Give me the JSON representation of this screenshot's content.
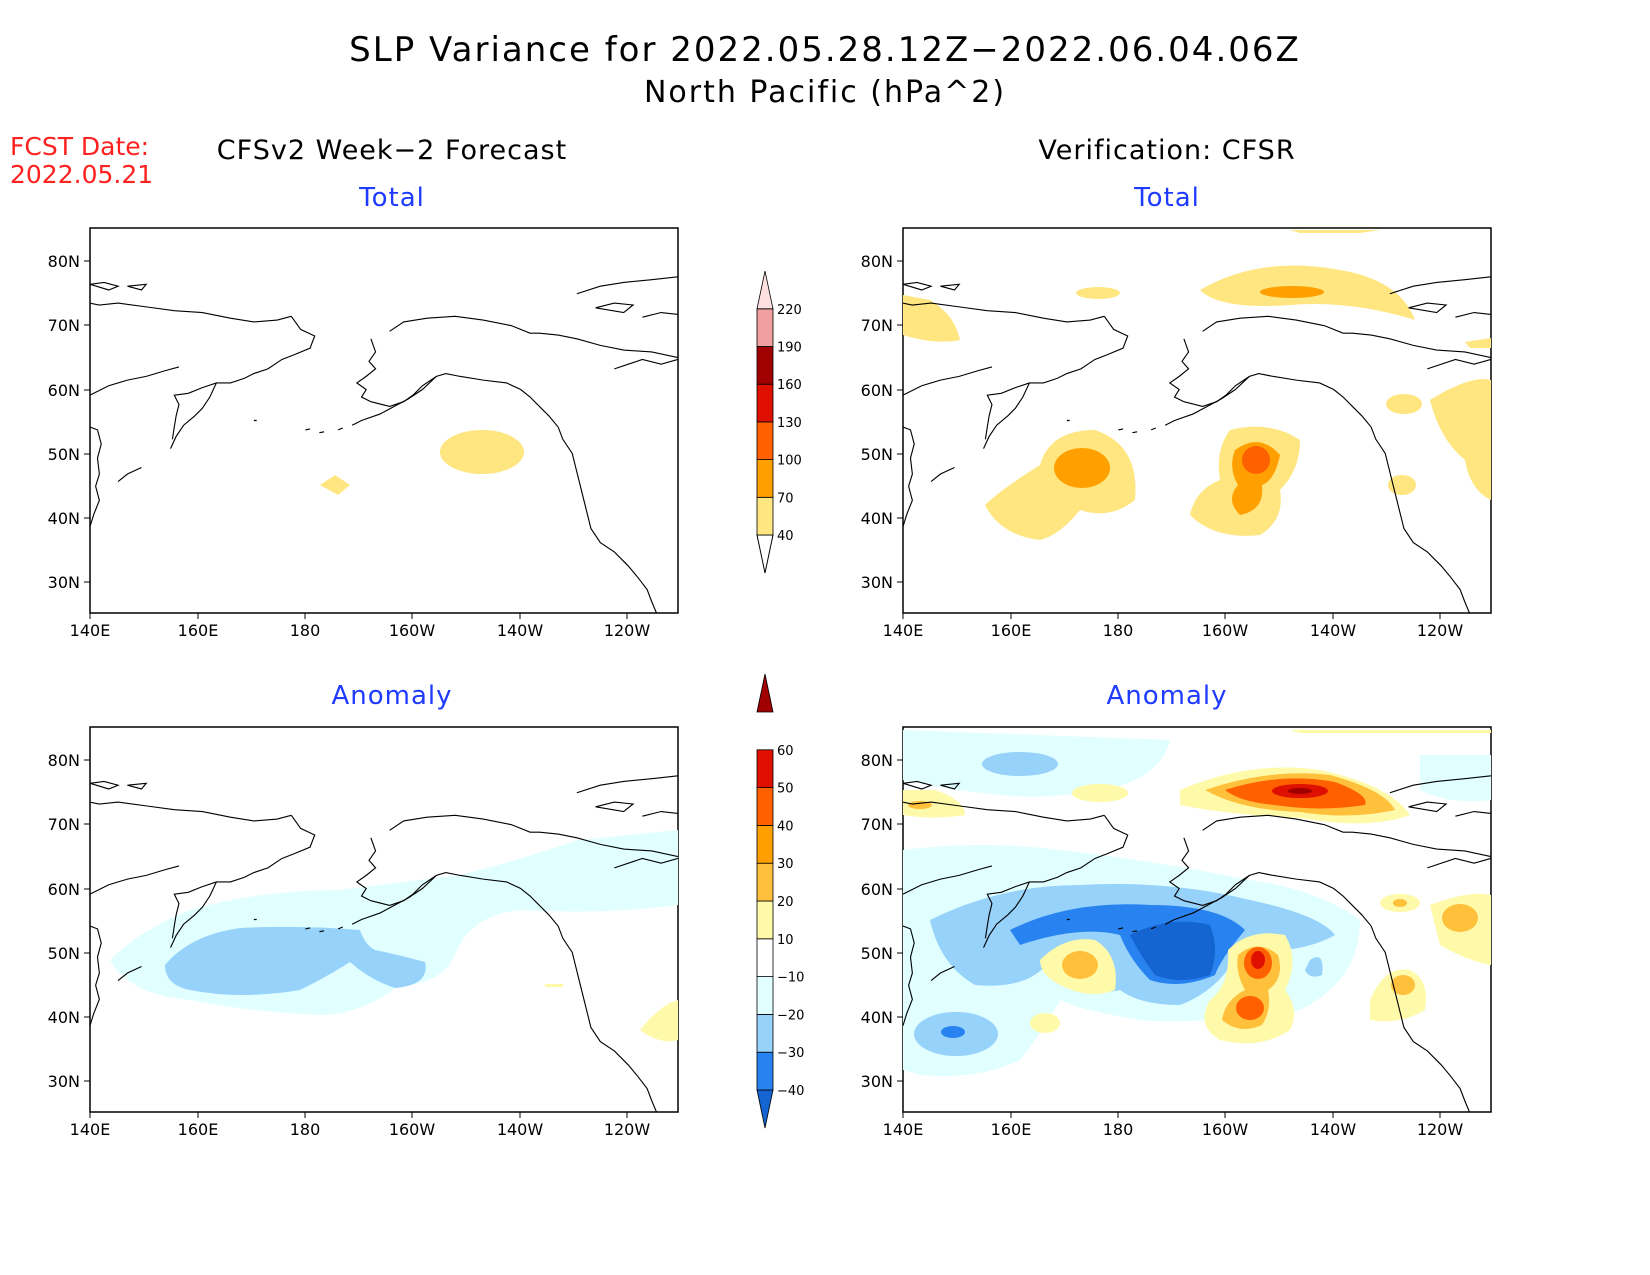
{
  "title": {
    "line1": "SLP Variance for 2022.05.28.12Z−2022.06.04.06Z",
    "line2": "North Pacific (hPa^2)"
  },
  "fcst_date": {
    "label": "FCST Date:",
    "value": "2022.05.21"
  },
  "columns": {
    "left": "CFSv2 Week−2 Forecast",
    "right": "Verification: CFSR"
  },
  "panels": {
    "total": "Total",
    "anomaly": "Anomaly"
  },
  "axes": {
    "lat_labels": [
      "80N",
      "70N",
      "60N",
      "50N",
      "40N",
      "30N"
    ],
    "lon_labels": [
      "140E",
      "160E",
      "180",
      "160W",
      "140W",
      "120W"
    ]
  },
  "legends": {
    "total": {
      "levels": [
        "40",
        "70",
        "100",
        "130",
        "160",
        "190",
        "220"
      ],
      "colors": [
        "#ffe680",
        "#ffa000",
        "#ff6000",
        "#e01000",
        "#a00000",
        "#f0a0a0",
        "#fde0e0"
      ]
    },
    "anomaly": {
      "levels": [
        "-40",
        "-30",
        "-20",
        "-10",
        "10",
        "20",
        "30",
        "40",
        "50",
        "60"
      ],
      "colors": [
        "#1464d2",
        "#2882f0",
        "#96d2fa",
        "#e1ffff",
        "#ffffff",
        "#fffaaa",
        "#ffc03c",
        "#ffa000",
        "#ff6000",
        "#e01000",
        "#a00000"
      ]
    }
  },
  "map_colors": {
    "total_40_70": "#ffe680",
    "total_70_100": "#ffa000",
    "total_100_130": "#ff6000",
    "anom_n10_n20": "#e1ffff",
    "anom_n20_n30": "#96d2fa",
    "anom_n30_n40": "#2882f0",
    "anom_below_n40": "#1464d2",
    "anom_10_20": "#fffaaa",
    "anom_20_30": "#ffc03c",
    "anom_30_40": "#ffa000",
    "anom_40_50": "#ff6000",
    "anom_50_60": "#e01000",
    "anom_above_60": "#a00000"
  }
}
